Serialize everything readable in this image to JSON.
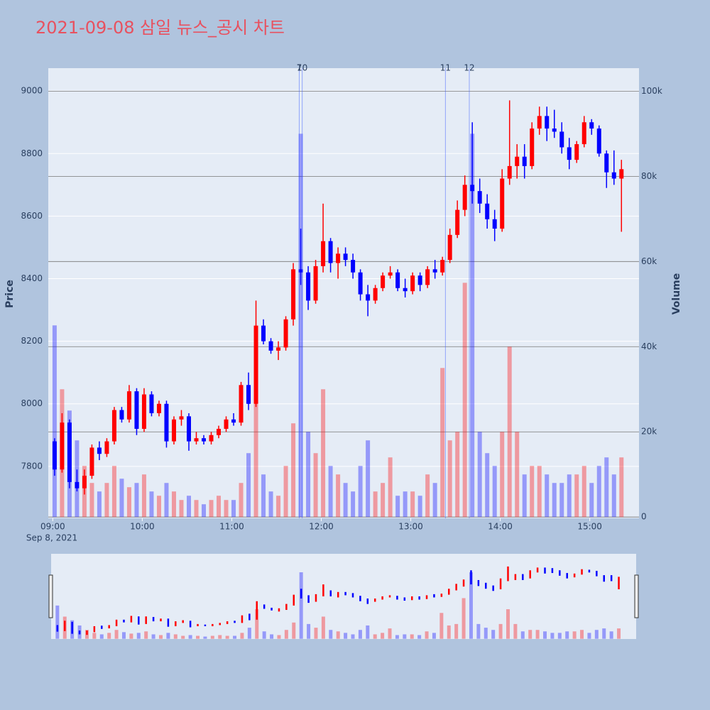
{
  "chart_data": {
    "type": "candlestick",
    "title": "2021-09-08 삼일 뉴스_공시 차트",
    "y_label": "Price",
    "y2_label": "Volume",
    "x_date_label": "Sep 8, 2021",
    "increasing_color": "#ff0000",
    "decreasing_color": "#0000ff",
    "xlim": [
      "08:57",
      "15:33"
    ],
    "xticks": [
      "09:00",
      "10:00",
      "11:00",
      "12:00",
      "13:00",
      "14:00",
      "15:00"
    ],
    "ylim": [
      7634,
      9073
    ],
    "yticks": [
      7800,
      8000,
      8200,
      8400,
      8600,
      8800,
      9000
    ],
    "y2lim": [
      -300,
      105400
    ],
    "y2ticks": [
      0,
      {
        "value": 20000,
        "label": "20k"
      },
      {
        "value": 40000,
        "label": "40k"
      },
      {
        "value": 60000,
        "label": "60k"
      },
      {
        "value": 80000,
        "label": "80k"
      },
      {
        "value": 100000,
        "label": "100k"
      }
    ],
    "annotations": [
      {
        "x": "11:44",
        "text": "7"
      },
      {
        "x": "11:46",
        "text": "10"
      },
      {
        "x": "13:22",
        "text": "11"
      },
      {
        "x": "13:38",
        "text": "12"
      }
    ],
    "x": [
      "09:00",
      "09:05",
      "09:10",
      "09:15",
      "09:20",
      "09:25",
      "09:30",
      "09:35",
      "09:40",
      "09:45",
      "09:50",
      "09:55",
      "10:00",
      "10:05",
      "10:10",
      "10:15",
      "10:20",
      "10:25",
      "10:30",
      "10:35",
      "10:40",
      "10:45",
      "10:50",
      "10:55",
      "11:00",
      "11:05",
      "11:10",
      "11:15",
      "11:20",
      "11:25",
      "11:30",
      "11:35",
      "11:40",
      "11:45",
      "11:50",
      "11:55",
      "12:00",
      "12:05",
      "12:10",
      "12:15",
      "12:20",
      "12:25",
      "12:30",
      "12:35",
      "12:40",
      "12:45",
      "12:50",
      "12:55",
      "13:00",
      "13:05",
      "13:10",
      "13:15",
      "13:20",
      "13:25",
      "13:30",
      "13:35",
      "13:40",
      "13:45",
      "13:50",
      "13:55",
      "14:00",
      "14:05",
      "14:10",
      "14:15",
      "14:20",
      "14:25",
      "14:30",
      "14:35",
      "14:40",
      "14:45",
      "14:50",
      "14:55",
      "15:00",
      "15:05",
      "15:10",
      "15:15",
      "15:20"
    ],
    "open": [
      7880,
      7790,
      7940,
      7750,
      7730,
      7770,
      7860,
      7840,
      7880,
      7980,
      7950,
      8040,
      7920,
      8030,
      7970,
      8000,
      7880,
      7950,
      7960,
      7880,
      7890,
      7880,
      7900,
      7920,
      7950,
      7940,
      8060,
      8000,
      8250,
      8200,
      8170,
      8180,
      8270,
      8430,
      8420,
      8330,
      8440,
      8520,
      8450,
      8480,
      8460,
      8420,
      8350,
      8330,
      8370,
      8410,
      8420,
      8370,
      8360,
      8410,
      8380,
      8430,
      8420,
      8460,
      8540,
      8620,
      8700,
      8680,
      8640,
      8590,
      8560,
      8720,
      8760,
      8790,
      8760,
      8880,
      8920,
      8880,
      8870,
      8820,
      8780,
      8830,
      8900,
      8880,
      8800,
      8740,
      8720
    ],
    "high": [
      7890,
      7970,
      7950,
      7790,
      7790,
      7870,
      7880,
      7890,
      7990,
      7990,
      8060,
      8050,
      8050,
      8040,
      8010,
      8010,
      7960,
      7980,
      7970,
      7910,
      7900,
      7910,
      7930,
      7960,
      7970,
      8070,
      8100,
      8330,
      8270,
      8210,
      8200,
      8280,
      8450,
      8560,
      8440,
      8460,
      8640,
      8530,
      8500,
      8500,
      8480,
      8430,
      8380,
      8380,
      8420,
      8440,
      8430,
      8400,
      8420,
      8420,
      8440,
      8460,
      8470,
      8560,
      8650,
      8730,
      8900,
      8720,
      8670,
      8620,
      8750,
      8970,
      8830,
      8830,
      8900,
      8950,
      8950,
      8940,
      8900,
      8850,
      8840,
      8920,
      8910,
      8890,
      8810,
      8810,
      8780
    ],
    "low": [
      7770,
      7780,
      7730,
      7720,
      7710,
      7760,
      7820,
      7830,
      7870,
      7940,
      7940,
      7900,
      7910,
      7960,
      7960,
      7860,
      7870,
      7930,
      7850,
      7870,
      7870,
      7870,
      7890,
      7910,
      7930,
      7930,
      7980,
      7990,
      8190,
      8160,
      8140,
      8170,
      8250,
      8380,
      8300,
      8320,
      8420,
      8420,
      8400,
      8440,
      8400,
      8330,
      8280,
      8320,
      8360,
      8400,
      8360,
      8340,
      8350,
      8360,
      8370,
      8400,
      8410,
      8450,
      8530,
      8600,
      8640,
      8610,
      8560,
      8520,
      8550,
      8700,
      8720,
      8720,
      8750,
      8860,
      8840,
      8850,
      8800,
      8750,
      8770,
      8820,
      8860,
      8790,
      8690,
      8700,
      8550
    ],
    "close": [
      7790,
      7940,
      7750,
      7730,
      7770,
      7860,
      7840,
      7880,
      7980,
      7950,
      8040,
      7920,
      8030,
      7970,
      8000,
      7880,
      7950,
      7960,
      7880,
      7890,
      7880,
      7900,
      7920,
      7950,
      7940,
      8060,
      8000,
      8250,
      8200,
      8170,
      8180,
      8270,
      8430,
      8420,
      8330,
      8440,
      8520,
      8450,
      8480,
      8460,
      8420,
      8350,
      8330,
      8370,
      8410,
      8420,
      8370,
      8360,
      8410,
      8380,
      8430,
      8420,
      8460,
      8540,
      8620,
      8700,
      8680,
      8640,
      8590,
      8560,
      8720,
      8760,
      8790,
      8760,
      8880,
      8920,
      8880,
      8870,
      8820,
      8780,
      8830,
      8900,
      8880,
      8800,
      8740,
      8720,
      8750
    ],
    "volume": [
      45000,
      30000,
      25000,
      18000,
      12000,
      8000,
      6000,
      8000,
      12000,
      9000,
      7000,
      8000,
      10000,
      6000,
      5000,
      8000,
      6000,
      4000,
      5000,
      4000,
      3000,
      4000,
      5000,
      4000,
      4000,
      8000,
      15000,
      40000,
      10000,
      6000,
      5000,
      12000,
      22000,
      90000,
      20000,
      15000,
      30000,
      12000,
      10000,
      8000,
      6000,
      12000,
      18000,
      6000,
      8000,
      14000,
      5000,
      6000,
      6000,
      5000,
      10000,
      8000,
      35000,
      18000,
      20000,
      55000,
      90000,
      20000,
      15000,
      12000,
      20000,
      40000,
      20000,
      10000,
      12000,
      12000,
      10000,
      8000,
      8000,
      10000,
      10000,
      12000,
      8000,
      12000,
      14000,
      10000,
      14000
    ]
  }
}
